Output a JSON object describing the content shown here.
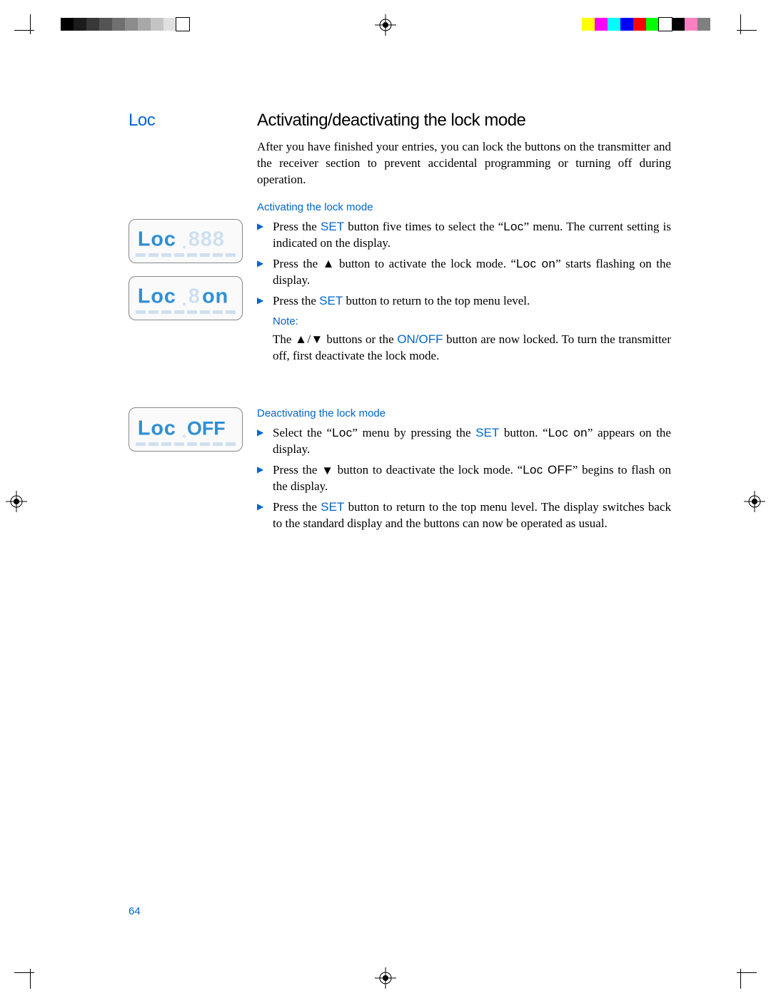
{
  "colors": {
    "accent": "#0066cc",
    "lcd_active": "#2f8fd6",
    "lcd_ghost": "#cfe0ef",
    "text": "#000000"
  },
  "print_marks": {
    "gray_ramp": [
      "#000000",
      "#1c1c1c",
      "#383838",
      "#545454",
      "#707070",
      "#8c8c8c",
      "#a8a8a8",
      "#c4c4c4",
      "#e0e0e0",
      "#ffffff"
    ],
    "color_bar": [
      "#ffff00",
      "#ff00ff",
      "#00ffff",
      "#0000ff",
      "#ff0000",
      "#00ff00",
      "#ffffff",
      "#000000",
      "#ff80c0",
      "#808080"
    ]
  },
  "header": {
    "label": "Loc",
    "title": "Activating/deactivating the lock mode"
  },
  "intro": "After you have finished your entries, you can lock the buttons on the transmitter and the receiver section to prevent accidental programming or turning off during operation.",
  "activating": {
    "heading": "Activating the lock mode",
    "items": {
      "0": {
        "pre": "Press the ",
        "set": "SET",
        "post1": " button five times to select the “",
        "loc": "Loc",
        "post2": "” menu. The current setting is indicated on the display."
      },
      "1": {
        "pre": "Press the ",
        "sym": "▲",
        "post1": " button to activate the lock mode. “",
        "locon": "Loc on",
        "post2": "” starts flashing on the display."
      },
      "2": {
        "pre": "Press the ",
        "set": "SET",
        "post": " button to return to the top menu level."
      }
    },
    "note_label": "Note:",
    "note": {
      "pre": "The ",
      "sym": "▲/▼",
      "mid": " buttons or the ",
      "onoff": "ON/OFF",
      "post": " button are now locked. To turn the transmitter off, first deactivate the lock mode."
    }
  },
  "deactivating": {
    "heading": "Deactivating the lock mode",
    "items": {
      "0": {
        "pre": "Select the “",
        "loc": "Loc",
        "mid": "” menu by pressing the ",
        "set": "SET",
        "post1": " button. “",
        "locon": "Loc on",
        "post2": "” appears on the display."
      },
      "1": {
        "pre": "Press the ",
        "sym": "▼",
        "post1": " button to deactivate the lock mode. “",
        "locoff": "Loc OFF",
        "post2": "” begins to flash on the display."
      },
      "2": {
        "pre": "Press the ",
        "set": "SET",
        "post": " button to return to the top menu level. The display switches back to the standard display and the buttons can now be operated as usual."
      }
    }
  },
  "lcd_panels": {
    "0": {
      "text": "Loc",
      "right_ghost": true
    },
    "1": {
      "text": "Loc on",
      "right_active_suffix": "on"
    },
    "2": {
      "text": "Loc OFF",
      "right_label": "OFF"
    }
  },
  "page_number": "64"
}
